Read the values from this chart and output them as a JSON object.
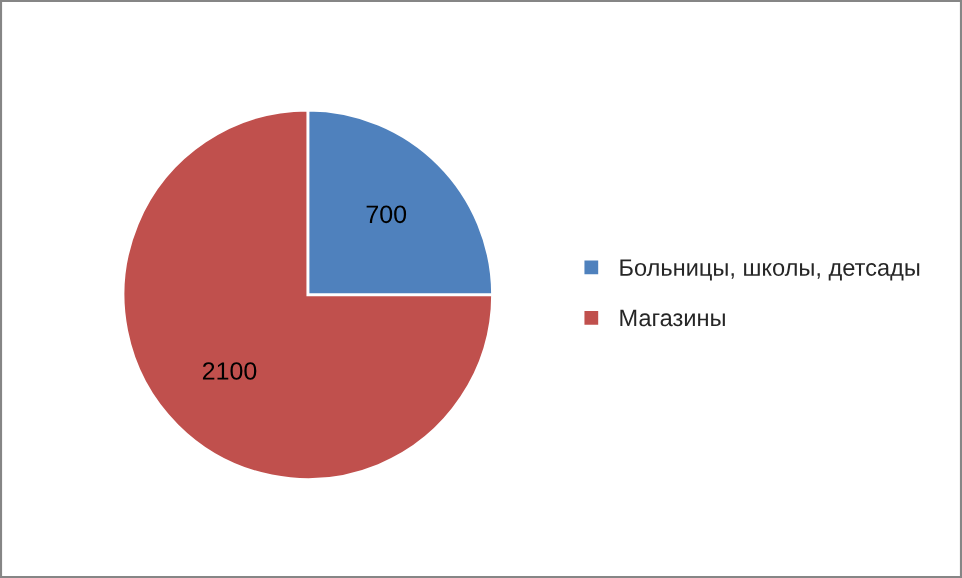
{
  "chart_data": {
    "type": "pie",
    "categories": [
      "Больницы, школы, детсады",
      "Магазины"
    ],
    "values": [
      700,
      2100
    ],
    "colors": [
      "#4f81bd",
      "#c0504d"
    ],
    "data_labels": true,
    "legend": "right"
  }
}
